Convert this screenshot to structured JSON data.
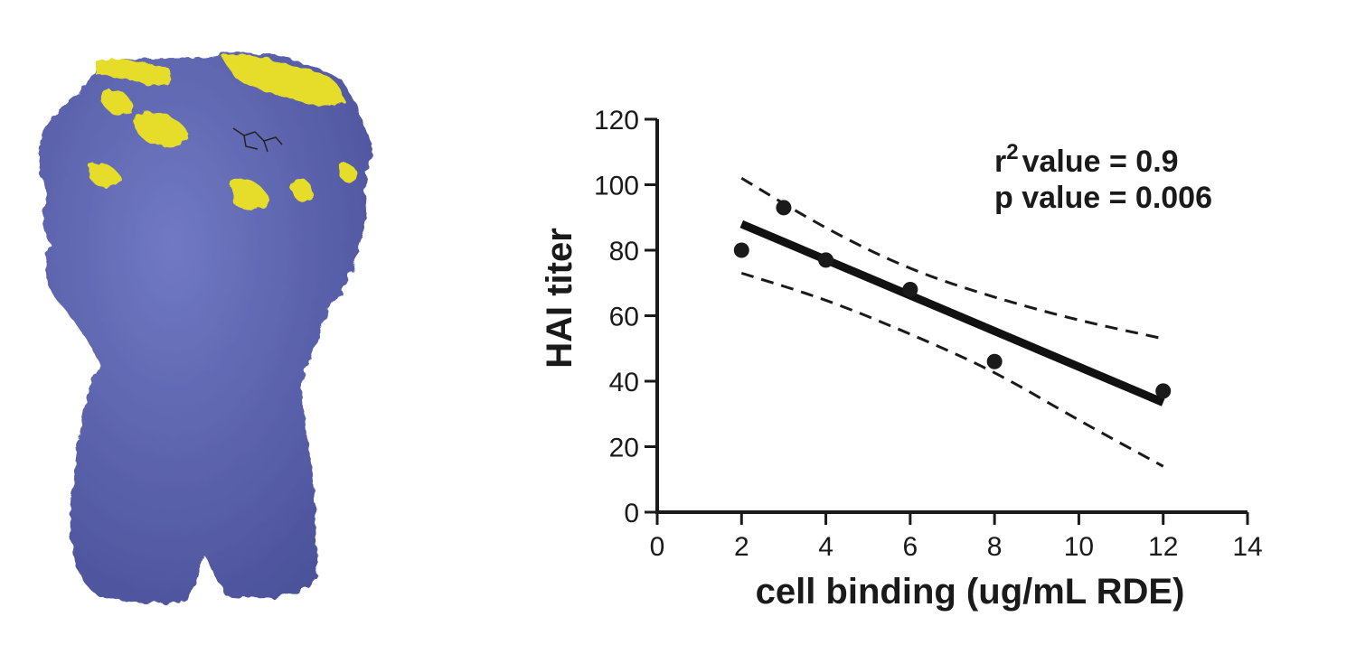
{
  "colors": {
    "protein_surface": "#5b62ad",
    "protein_highlight": "#e6dc2c",
    "ink": "#1a1a1a"
  },
  "protein_image": {
    "icon": "protein-trimer-surface-render"
  },
  "chart_data": {
    "type": "scatter",
    "xlabel": "cell binding (ug/mL RDE)",
    "ylabel": "HAI titer",
    "xlim": [
      0,
      14
    ],
    "ylim": [
      0,
      120
    ],
    "xticks": [
      0,
      2,
      4,
      6,
      8,
      10,
      12,
      14
    ],
    "yticks": [
      0,
      20,
      40,
      60,
      80,
      100,
      120
    ],
    "grid": false,
    "points": [
      {
        "x": 2,
        "y": 80
      },
      {
        "x": 3,
        "y": 93
      },
      {
        "x": 4,
        "y": 77
      },
      {
        "x": 6,
        "y": 68
      },
      {
        "x": 8,
        "y": 46
      },
      {
        "x": 12,
        "y": 37
      }
    ],
    "fit_line": {
      "x": [
        2,
        12
      ],
      "y": [
        88,
        33.5
      ]
    },
    "confidence_band": {
      "upper": {
        "x": [
          2,
          4,
          6,
          8,
          10,
          12
        ],
        "y": [
          102,
          86.5,
          74,
          65.5,
          58.5,
          53
        ]
      },
      "lower": {
        "x": [
          2,
          4,
          6,
          8,
          10,
          12
        ],
        "y": [
          73,
          65,
          54.5,
          43,
          28,
          14
        ]
      }
    },
    "annotations": {
      "r_symbol": "r",
      "r_superscript": "2",
      "r2_text": "value = 0.9",
      "p_text": "p value = 0.006"
    }
  }
}
